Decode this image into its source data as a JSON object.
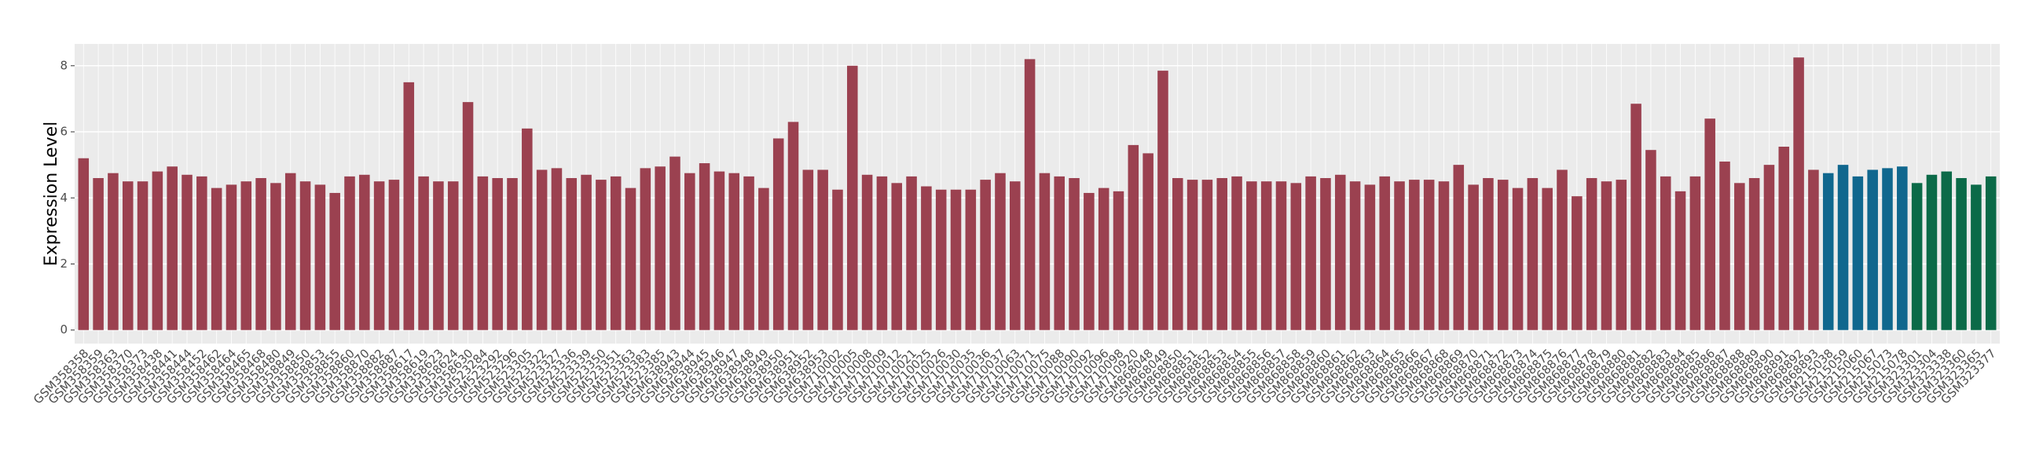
{
  "chart_data": {
    "type": "bar",
    "y_label": "Expression Level",
    "categories": [
      "GSM358358",
      "GSM358359",
      "GSM358363",
      "GSM358370",
      "GSM358373",
      "GSM358438",
      "GSM358441",
      "GSM358444",
      "GSM358452",
      "GSM358462",
      "GSM358464",
      "GSM358465",
      "GSM358468",
      "GSM358480",
      "GSM358849",
      "GSM358850",
      "GSM358853",
      "GSM358855",
      "GSM358860",
      "GSM358870",
      "GSM358882",
      "GSM358887",
      "GSM358617",
      "GSM358619",
      "GSM358623",
      "GSM358624",
      "GSM358630",
      "GSM523284",
      "GSM523292",
      "GSM523296",
      "GSM523305",
      "GSM523322",
      "GSM523327",
      "GSM523336",
      "GSM523339",
      "GSM523350",
      "GSM523351",
      "GSM523363",
      "GSM523383",
      "GSM523385",
      "GSM638943",
      "GSM638944",
      "GSM638945",
      "GSM638946",
      "GSM638947",
      "GSM638948",
      "GSM638949",
      "GSM638950",
      "GSM638951",
      "GSM638952",
      "GSM638953",
      "GSM710002",
      "GSM710005",
      "GSM710008",
      "GSM710009",
      "GSM710012",
      "GSM710021",
      "GSM710025",
      "GSM710026",
      "GSM710030",
      "GSM710035",
      "GSM710036",
      "GSM710037",
      "GSM710063",
      "GSM710071",
      "GSM710075",
      "GSM710088",
      "GSM710090",
      "GSM710092",
      "GSM710096",
      "GSM710098",
      "GSM710920",
      "GSM868048",
      "GSM868049",
      "GSM868850",
      "GSM868851",
      "GSM868852",
      "GSM868853",
      "GSM868854",
      "GSM868855",
      "GSM868856",
      "GSM868857",
      "GSM868858",
      "GSM868859",
      "GSM868860",
      "GSM868861",
      "GSM868862",
      "GSM868863",
      "GSM868864",
      "GSM868865",
      "GSM868866",
      "GSM868867",
      "GSM868868",
      "GSM868869",
      "GSM868870",
      "GSM868871",
      "GSM868872",
      "GSM868873",
      "GSM868874",
      "GSM868875",
      "GSM868876",
      "GSM868877",
      "GSM868878",
      "GSM868879",
      "GSM868880",
      "GSM868881",
      "GSM868882",
      "GSM868883",
      "GSM868884",
      "GSM868885",
      "GSM868886",
      "GSM868887",
      "GSM868888",
      "GSM868889",
      "GSM868890",
      "GSM868891",
      "GSM868892",
      "GSM868893",
      "GSM215038",
      "GSM215059",
      "GSM215060",
      "GSM215067",
      "GSM215073",
      "GSM215078",
      "GSM323301",
      "GSM323304",
      "GSM323338",
      "GSM323360",
      "GSM323365",
      "GSM323377"
    ],
    "values": [
      5.2,
      4.6,
      4.75,
      4.5,
      4.5,
      4.8,
      4.95,
      4.7,
      4.65,
      4.3,
      4.4,
      4.5,
      4.6,
      4.45,
      4.75,
      4.5,
      4.4,
      4.15,
      4.65,
      4.7,
      4.5,
      4.55,
      7.5,
      4.65,
      4.5,
      4.5,
      6.9,
      4.65,
      4.6,
      4.6,
      6.1,
      4.85,
      4.9,
      4.6,
      4.7,
      4.55,
      4.65,
      4.3,
      4.9,
      4.95,
      5.25,
      4.75,
      5.05,
      4.8,
      4.75,
      4.65,
      4.3,
      5.8,
      6.3,
      4.85,
      4.85,
      4.25,
      8.0,
      4.7,
      4.65,
      4.45,
      4.65,
      4.35,
      4.25,
      4.25,
      4.25,
      4.55,
      4.75,
      4.5,
      8.2,
      4.75,
      4.65,
      4.6,
      4.15,
      4.3,
      4.2,
      5.6,
      5.35,
      7.85,
      4.6,
      4.55,
      4.55,
      4.6,
      4.65,
      4.5,
      4.5,
      4.5,
      4.45,
      4.65,
      4.6,
      4.7,
      4.5,
      4.4,
      4.65,
      4.5,
      4.55,
      4.55,
      4.5,
      5.0,
      4.4,
      4.6,
      4.55,
      4.3,
      4.6,
      4.3,
      4.85,
      4.05,
      4.6,
      4.5,
      4.55,
      6.85,
      5.45,
      4.65,
      4.2,
      4.65,
      6.4,
      5.1,
      4.45,
      4.6,
      5.0,
      5.55,
      8.25,
      4.85,
      4.75,
      5.0,
      4.65,
      4.85,
      4.9,
      4.95,
      4.45,
      4.7,
      4.8,
      4.6,
      4.4,
      4.65
    ],
    "colors": [
      "#9b4150",
      "#9b4150",
      "#9b4150",
      "#9b4150",
      "#9b4150",
      "#9b4150",
      "#9b4150",
      "#9b4150",
      "#9b4150",
      "#9b4150",
      "#9b4150",
      "#9b4150",
      "#9b4150",
      "#9b4150",
      "#9b4150",
      "#9b4150",
      "#9b4150",
      "#9b4150",
      "#9b4150",
      "#9b4150",
      "#9b4150",
      "#9b4150",
      "#9b4150",
      "#9b4150",
      "#9b4150",
      "#9b4150",
      "#9b4150",
      "#9b4150",
      "#9b4150",
      "#9b4150",
      "#9b4150",
      "#9b4150",
      "#9b4150",
      "#9b4150",
      "#9b4150",
      "#9b4150",
      "#9b4150",
      "#9b4150",
      "#9b4150",
      "#9b4150",
      "#9b4150",
      "#9b4150",
      "#9b4150",
      "#9b4150",
      "#9b4150",
      "#9b4150",
      "#9b4150",
      "#9b4150",
      "#9b4150",
      "#9b4150",
      "#9b4150",
      "#9b4150",
      "#9b4150",
      "#9b4150",
      "#9b4150",
      "#9b4150",
      "#9b4150",
      "#9b4150",
      "#9b4150",
      "#9b4150",
      "#9b4150",
      "#9b4150",
      "#9b4150",
      "#9b4150",
      "#9b4150",
      "#9b4150",
      "#9b4150",
      "#9b4150",
      "#9b4150",
      "#9b4150",
      "#9b4150",
      "#9b4150",
      "#9b4150",
      "#9b4150",
      "#9b4150",
      "#9b4150",
      "#9b4150",
      "#9b4150",
      "#9b4150",
      "#9b4150",
      "#9b4150",
      "#9b4150",
      "#9b4150",
      "#9b4150",
      "#9b4150",
      "#9b4150",
      "#9b4150",
      "#9b4150",
      "#9b4150",
      "#9b4150",
      "#9b4150",
      "#9b4150",
      "#9b4150",
      "#9b4150",
      "#9b4150",
      "#9b4150",
      "#9b4150",
      "#9b4150",
      "#9b4150",
      "#9b4150",
      "#9b4150",
      "#9b4150",
      "#9b4150",
      "#9b4150",
      "#9b4150",
      "#9b4150",
      "#9b4150",
      "#9b4150",
      "#9b4150",
      "#9b4150",
      "#9b4150",
      "#9b4150",
      "#9b4150",
      "#9b4150",
      "#9b4150",
      "#9b4150",
      "#9b4150",
      "#9b4150",
      "#10678e",
      "#10678e",
      "#10678e",
      "#10678e",
      "#10678e",
      "#10678e",
      "#0b6a48",
      "#0b6a48",
      "#0b6a48",
      "#0b6a48",
      "#0b6a48",
      "#0b6a48"
    ],
    "ylim": [
      -0.41,
      8.66
    ],
    "yticks": [
      0,
      2,
      4,
      6,
      8
    ],
    "grid": true
  }
}
